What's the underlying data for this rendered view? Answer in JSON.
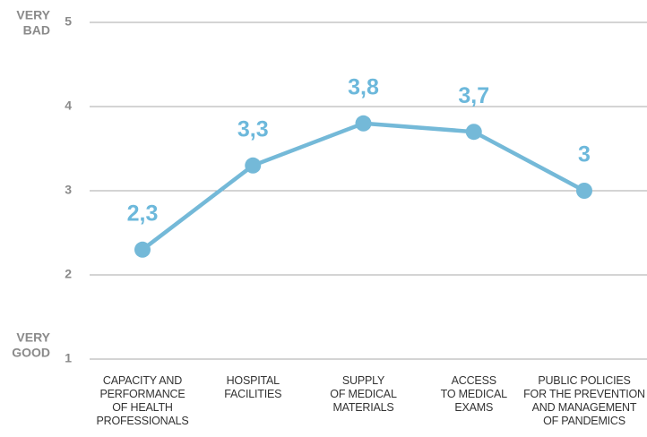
{
  "chart_data": {
    "type": "line",
    "y_top_label": [
      "VERY",
      "BAD"
    ],
    "y_bottom_label": [
      "VERY",
      "GOOD"
    ],
    "categories": [
      "CAPACITY AND\nPERFORMANCE\nOF HEALTH\nPROFESSIONALS",
      "HOSPITAL\nFACILITIES",
      "SUPPLY\nOF MEDICAL\nMATERIALS",
      "ACCESS\nTO MEDICAL\nEXAMS",
      "PUBLIC POLICIES\nFOR THE PREVENTION\nAND MANAGEMENT\nOF PANDEMICS"
    ],
    "values": [
      2.3,
      3.3,
      3.8,
      3.7,
      3
    ],
    "value_labels": [
      "2,3",
      "3,3",
      "3,8",
      "3,7",
      "3"
    ],
    "color": "#74b9d8",
    "ylim": [
      1,
      5
    ],
    "yticks": [
      1,
      2,
      3,
      4,
      5
    ],
    "grid": true
  }
}
